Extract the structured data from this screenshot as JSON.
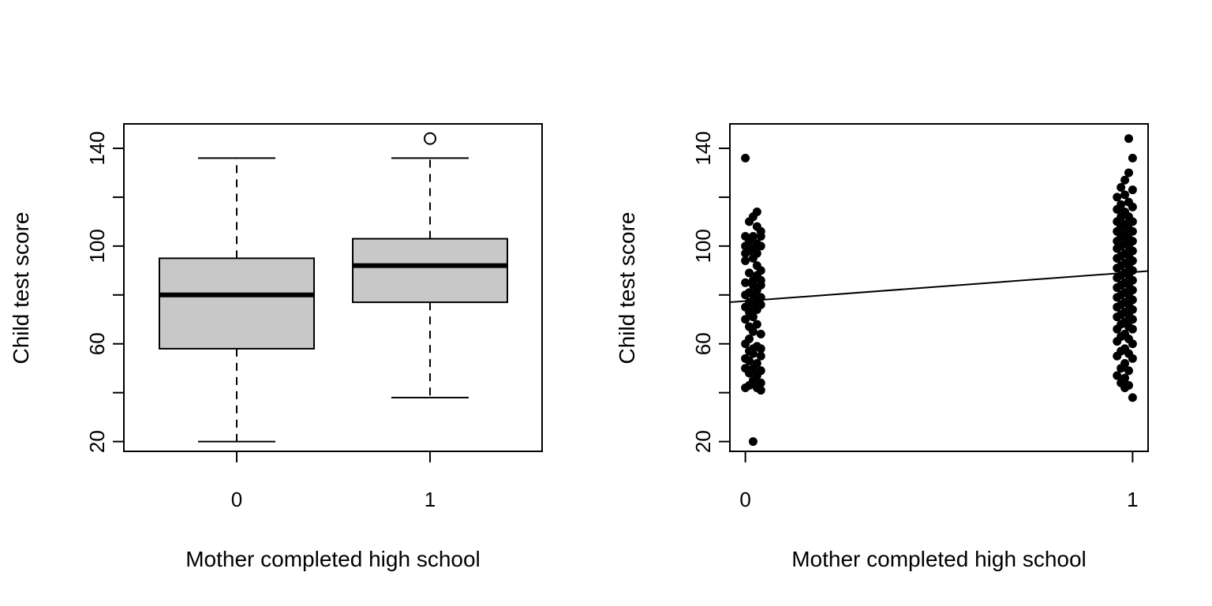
{
  "chart_data": [
    {
      "type": "box",
      "xlabel": "Mother completed high school",
      "ylabel": "Child test score",
      "categories": [
        "0",
        "1"
      ],
      "y_ticks": [
        20,
        60,
        100,
        140
      ],
      "ylim": [
        16,
        150
      ],
      "boxes": [
        {
          "category": "0",
          "whisker_low": 20,
          "q1": 58,
          "median": 80,
          "q3": 95,
          "whisker_high": 136,
          "outliers": []
        },
        {
          "category": "1",
          "whisker_low": 38,
          "q1": 77,
          "median": 92,
          "q3": 103,
          "whisker_high": 136,
          "outliers": [
            144
          ]
        }
      ],
      "colors": {
        "box_fill": "#c8c8c8",
        "stroke": "#000000"
      }
    },
    {
      "type": "scatter",
      "xlabel": "Mother completed high school",
      "ylabel": "Child test score",
      "x_ticks": [
        "0",
        "1"
      ],
      "y_ticks": [
        20,
        60,
        100,
        140
      ],
      "xlim": [
        -0.04,
        1.04
      ],
      "ylim": [
        16,
        150
      ],
      "regression_line": {
        "intercept": 77.5,
        "slope": 11.8
      },
      "series": [
        {
          "points": [
            [
              0.0,
              136
            ],
            [
              0.02,
              112
            ],
            [
              0.03,
              114
            ],
            [
              0.01,
              110
            ],
            [
              0.03,
              108
            ],
            [
              0.04,
              106
            ],
            [
              0.0,
              104
            ],
            [
              0.02,
              104
            ],
            [
              0.04,
              104
            ],
            [
              0.01,
              102
            ],
            [
              0.03,
              101
            ],
            [
              0.0,
              100
            ],
            [
              0.02,
              99
            ],
            [
              0.04,
              100
            ],
            [
              0.01,
              98
            ],
            [
              0.0,
              97
            ],
            [
              0.03,
              97
            ],
            [
              0.02,
              95
            ],
            [
              0.0,
              94
            ],
            [
              0.03,
              92
            ],
            [
              0.04,
              90
            ],
            [
              0.01,
              89
            ],
            [
              0.03,
              88
            ],
            [
              0.02,
              86
            ],
            [
              0.04,
              86
            ],
            [
              0.0,
              85
            ],
            [
              0.02,
              84
            ],
            [
              0.04,
              84
            ],
            [
              0.03,
              82
            ],
            [
              0.01,
              81
            ],
            [
              0.0,
              80
            ],
            [
              0.02,
              80
            ],
            [
              0.04,
              79
            ],
            [
              0.03,
              78
            ],
            [
              0.01,
              77
            ],
            [
              0.02,
              76
            ],
            [
              0.04,
              76
            ],
            [
              0.0,
              75
            ],
            [
              0.03,
              74
            ],
            [
              0.01,
              73
            ],
            [
              0.02,
              71
            ],
            [
              0.0,
              70
            ],
            [
              0.03,
              68
            ],
            [
              0.01,
              67
            ],
            [
              0.02,
              65
            ],
            [
              0.04,
              64
            ],
            [
              0.01,
              62
            ],
            [
              0.0,
              60
            ],
            [
              0.03,
              59
            ],
            [
              0.02,
              58
            ],
            [
              0.04,
              58
            ],
            [
              0.01,
              57
            ],
            [
              0.02,
              56
            ],
            [
              0.04,
              55
            ],
            [
              0.0,
              54
            ],
            [
              0.01,
              53
            ],
            [
              0.03,
              52
            ],
            [
              0.02,
              50
            ],
            [
              0.0,
              50
            ],
            [
              0.04,
              49
            ],
            [
              0.01,
              48
            ],
            [
              0.03,
              47
            ],
            [
              0.02,
              45
            ],
            [
              0.04,
              44
            ],
            [
              0.01,
              43
            ],
            [
              0.0,
              42
            ],
            [
              0.03,
              42
            ],
            [
              0.04,
              41
            ],
            [
              0.02,
              20
            ],
            [
              0.99,
              144
            ],
            [
              1.0,
              136
            ],
            [
              0.99,
              130
            ],
            [
              0.98,
              127
            ],
            [
              0.97,
              124
            ],
            [
              1.0,
              123
            ],
            [
              0.98,
              121
            ],
            [
              0.96,
              120
            ],
            [
              0.99,
              118
            ],
            [
              0.97,
              117
            ],
            [
              1.0,
              116
            ],
            [
              0.96,
              115
            ],
            [
              0.98,
              114
            ],
            [
              0.97,
              112
            ],
            [
              0.99,
              112
            ],
            [
              0.96,
              110
            ],
            [
              1.0,
              110
            ],
            [
              0.98,
              109
            ],
            [
              0.97,
              108
            ],
            [
              0.99,
              107
            ],
            [
              0.96,
              106
            ],
            [
              1.0,
              106
            ],
            [
              0.98,
              105
            ],
            [
              0.97,
              104
            ],
            [
              0.99,
              103
            ],
            [
              0.96,
              102
            ],
            [
              1.0,
              102
            ],
            [
              0.98,
              101
            ],
            [
              0.97,
              100
            ],
            [
              0.99,
              100
            ],
            [
              0.96,
              99
            ],
            [
              1.0,
              98
            ],
            [
              0.98,
              97
            ],
            [
              0.97,
              96
            ],
            [
              0.99,
              96
            ],
            [
              0.96,
              95
            ],
            [
              1.0,
              94
            ],
            [
              0.98,
              93
            ],
            [
              0.97,
              92
            ],
            [
              0.99,
              92
            ],
            [
              0.96,
              91
            ],
            [
              1.0,
              90
            ],
            [
              0.98,
              89
            ],
            [
              0.97,
              88
            ],
            [
              0.99,
              88
            ],
            [
              0.96,
              87
            ],
            [
              1.0,
              86
            ],
            [
              0.98,
              85
            ],
            [
              0.97,
              84
            ],
            [
              0.99,
              84
            ],
            [
              0.96,
              83
            ],
            [
              1.0,
              82
            ],
            [
              0.98,
              81
            ],
            [
              0.97,
              80
            ],
            [
              0.99,
              80
            ],
            [
              0.96,
              79
            ],
            [
              1.0,
              78
            ],
            [
              0.98,
              77
            ],
            [
              0.97,
              76
            ],
            [
              0.99,
              76
            ],
            [
              0.96,
              75
            ],
            [
              1.0,
              74
            ],
            [
              0.98,
              73
            ],
            [
              0.97,
              72
            ],
            [
              0.99,
              72
            ],
            [
              0.96,
              71
            ],
            [
              1.0,
              70
            ],
            [
              0.98,
              69
            ],
            [
              0.97,
              68
            ],
            [
              0.99,
              67
            ],
            [
              0.96,
              66
            ],
            [
              1.0,
              66
            ],
            [
              0.98,
              64
            ],
            [
              0.97,
              63
            ],
            [
              0.99,
              62
            ],
            [
              0.96,
              61
            ],
            [
              1.0,
              60
            ],
            [
              0.98,
              58
            ],
            [
              0.97,
              57
            ],
            [
              0.99,
              56
            ],
            [
              0.96,
              55
            ],
            [
              1.0,
              54
            ],
            [
              0.98,
              52
            ],
            [
              0.97,
              50
            ],
            [
              0.99,
              49
            ],
            [
              0.96,
              47
            ],
            [
              0.98,
              46
            ],
            [
              0.97,
              44
            ],
            [
              0.99,
              43
            ],
            [
              0.98,
              42
            ],
            [
              1.0,
              38
            ]
          ]
        }
      ],
      "colors": {
        "point": "#000000",
        "line": "#000000"
      }
    }
  ]
}
